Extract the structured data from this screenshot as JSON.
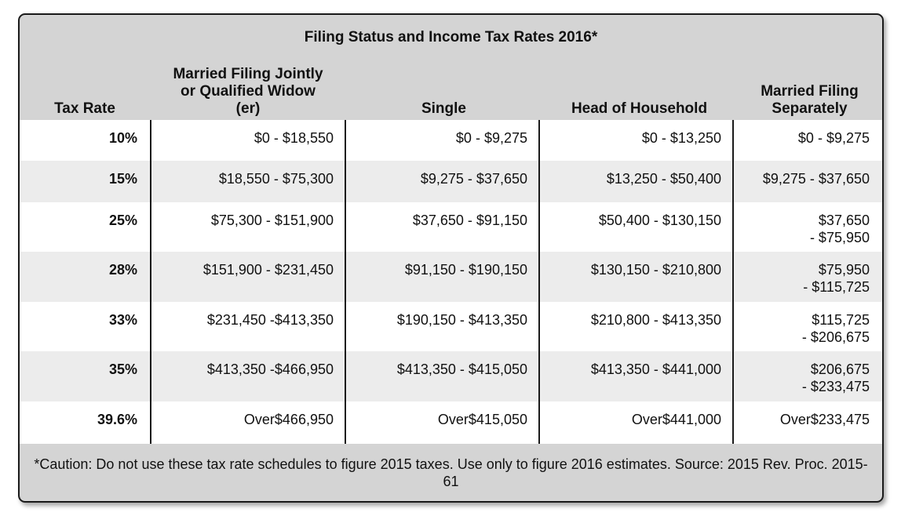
{
  "title": "Filing Status and Income Tax Rates 2016*",
  "headers": [
    "Tax Rate",
    "Married Filing Jointly or Qualified Widow (er)",
    "Single",
    "Head of Household",
    "Married Filing Separately"
  ],
  "header_lines": {
    "mfj": [
      "Married Filing Jointly",
      "or Qualified Widow",
      "(er)"
    ],
    "mfs": [
      "Married Filing",
      "Separately"
    ]
  },
  "rows": [
    {
      "rate": "10%",
      "mfj": "$0 - $18,550",
      "single": "$0 - $9,275",
      "hoh": "$0 - $13,250",
      "mfs": [
        "$0 - $9,275"
      ]
    },
    {
      "rate": "15%",
      "mfj": "$18,550 - $75,300",
      "single": "$9,275 - $37,650",
      "hoh": "$13,250 - $50,400",
      "mfs": [
        "$9,275 - $37,650"
      ]
    },
    {
      "rate": "25%",
      "mfj": "$75,300 - $151,900",
      "single": "$37,650 - $91,150",
      "hoh": "$50,400 - $130,150",
      "mfs": [
        "$37,650",
        "- $75,950"
      ]
    },
    {
      "rate": "28%",
      "mfj": "$151,900 - $231,450",
      "single": "$91,150 - $190,150",
      "hoh": "$130,150 - $210,800",
      "mfs": [
        "$75,950",
        "- $115,725"
      ]
    },
    {
      "rate": "33%",
      "mfj": "$231,450 -$413,350",
      "single": "$190,150 - $413,350",
      "hoh": "$210,800 - $413,350",
      "mfs": [
        "$115,725",
        "- $206,675"
      ]
    },
    {
      "rate": "35%",
      "mfj": "$413,350 -$466,950",
      "single": "$413,350 - $415,050",
      "hoh": "$413,350 - $441,000",
      "mfs": [
        "$206,675",
        "- $233,475"
      ]
    },
    {
      "rate": "39.6%",
      "mfj": "Over$466,950",
      "single": "Over$415,050",
      "hoh": "Over$441,000",
      "mfs": [
        "Over$233,475"
      ]
    }
  ],
  "footer": "*Caution: Do not use these tax rate schedules to figure 2015 taxes. Use only to figure 2016 estimates. Source: 2015 Rev. Proc. 2015-61",
  "colors": {
    "header_bg": "#d4d4d4",
    "row_white": "#ffffff",
    "row_gray": "#ececec",
    "border": "#1a1a1a"
  }
}
